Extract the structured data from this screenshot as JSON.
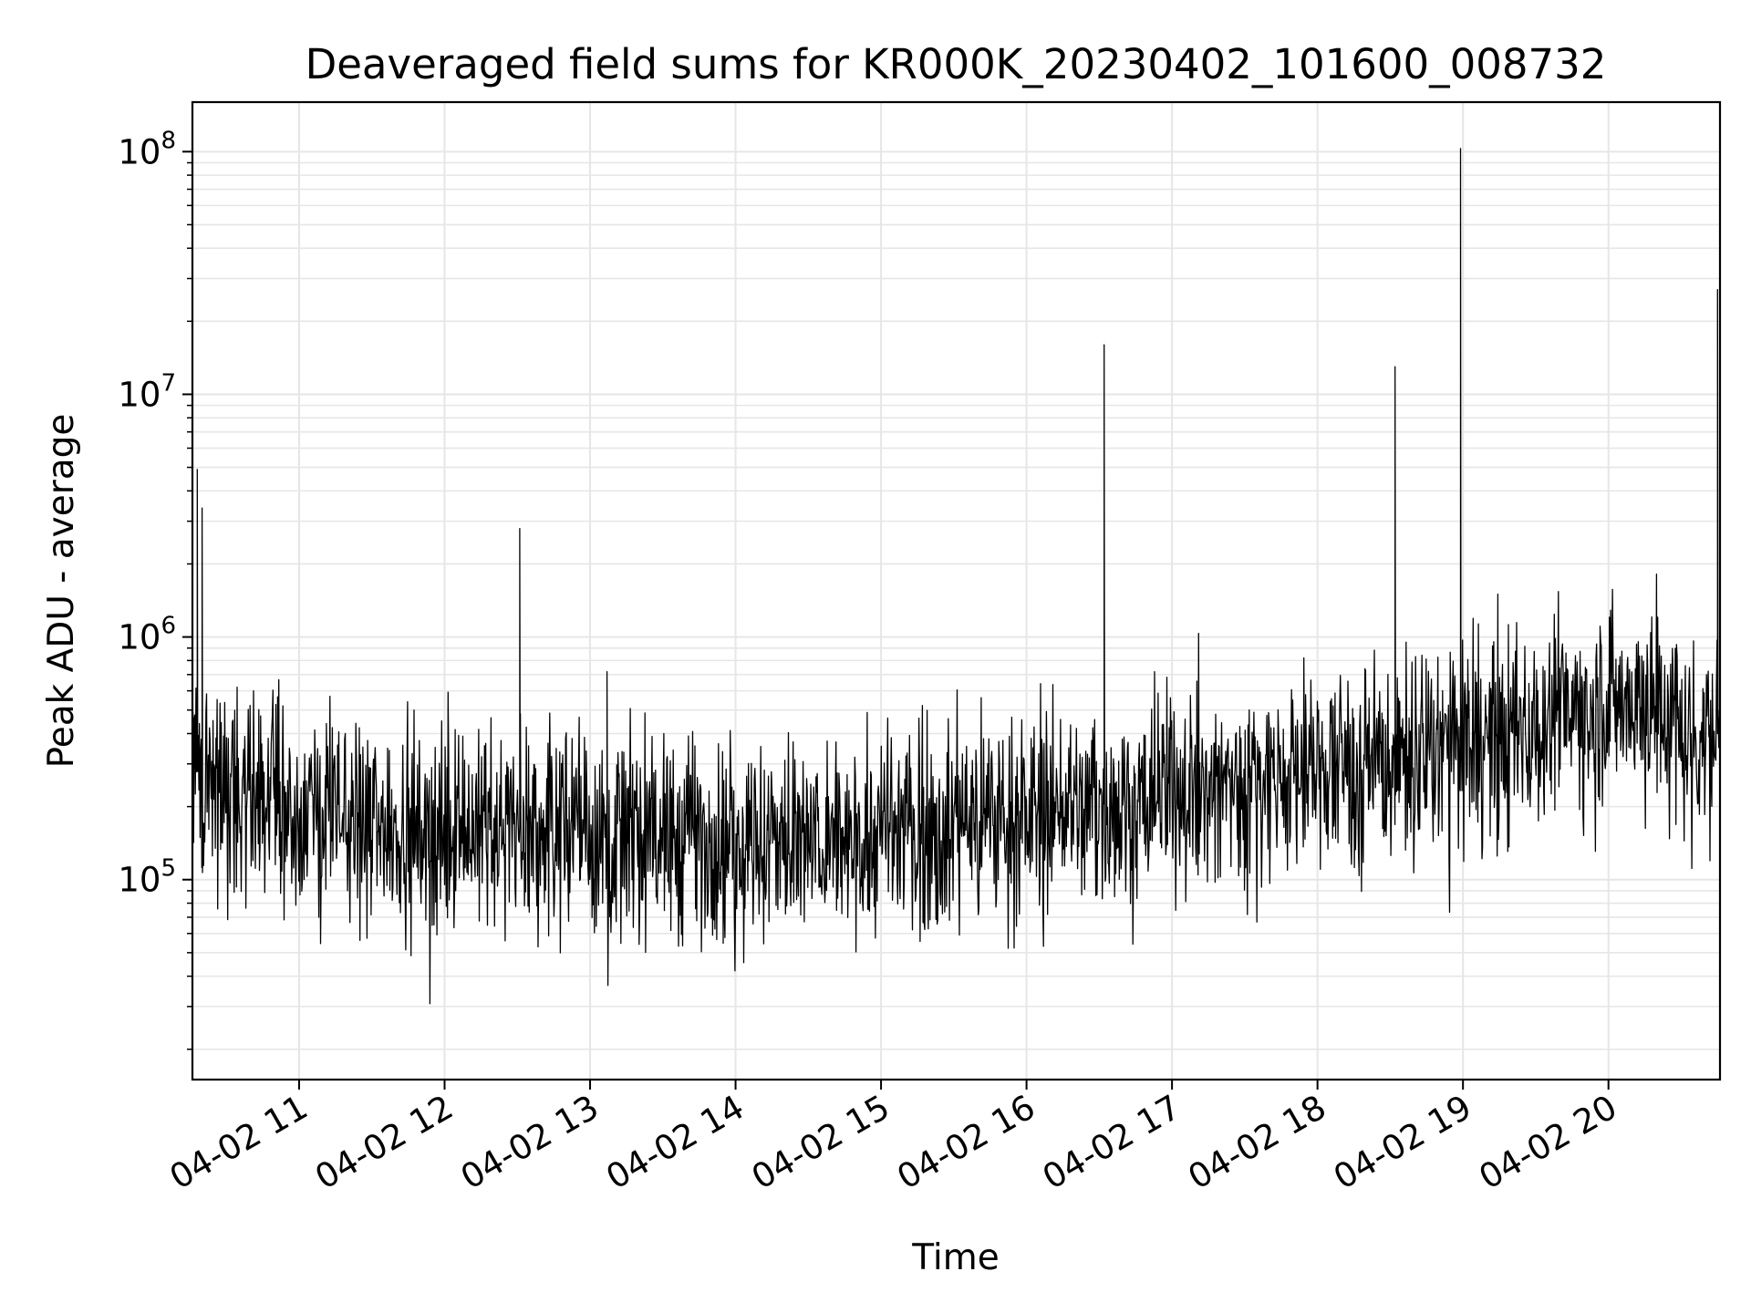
{
  "chart_data": {
    "type": "line",
    "title": "Deaveraged field sums for KR000K_20230402_101600_008732",
    "xlabel": "Time",
    "ylabel": "Peak ADU - average",
    "y_scale": "log",
    "ylim": [
      15000,
      160000000
    ],
    "xlim": [
      "04-02 10:16",
      "04-02 20:46"
    ],
    "grid": true,
    "legend": "none",
    "colors": {
      "line": "#000000",
      "grid": "#e6e6e6",
      "axis": "#000000",
      "background": "#ffffff"
    },
    "x_ticks": [
      {
        "label": "04-02 11",
        "hour": 11
      },
      {
        "label": "04-02 12",
        "hour": 12
      },
      {
        "label": "04-02 13",
        "hour": 13
      },
      {
        "label": "04-02 14",
        "hour": 14
      },
      {
        "label": "04-02 15",
        "hour": 15
      },
      {
        "label": "04-02 16",
        "hour": 16
      },
      {
        "label": "04-02 17",
        "hour": 17
      },
      {
        "label": "04-02 18",
        "hour": 18
      },
      {
        "label": "04-02 19",
        "hour": 19
      },
      {
        "label": "04-02 20",
        "hour": 20
      }
    ],
    "y_ticks": [
      {
        "base": "10",
        "exp": "5",
        "value": 100000
      },
      {
        "base": "10",
        "exp": "6",
        "value": 1000000
      },
      {
        "base": "10",
        "exp": "7",
        "value": 10000000
      },
      {
        "base": "10",
        "exp": "8",
        "value": 100000000
      }
    ],
    "series": [
      {
        "x": [
          "04-02 10:16",
          "04-02 10:18",
          "04-02 10:20",
          "04-02 10:30",
          "04-02 10:45",
          "04-02 11:00",
          "04-02 11:20",
          "04-02 11:40",
          "04-02 12:00",
          "04-02 12:20",
          "04-02 12:31",
          "04-02 12:45",
          "04-02 13:00",
          "04-02 13:07",
          "04-02 13:20",
          "04-02 13:40",
          "04-02 14:00",
          "04-02 14:20",
          "04-02 14:40",
          "04-02 15:00",
          "04-02 15:20",
          "04-02 15:40",
          "04-02 16:00",
          "04-02 16:20",
          "04-02 16:32",
          "04-02 16:45",
          "04-02 17:00",
          "04-02 17:20",
          "04-02 17:40",
          "04-02 18:00",
          "04-02 18:20",
          "04-02 18:32",
          "04-02 18:45",
          "04-02 18:59",
          "04-02 19:10",
          "04-02 19:30",
          "04-02 19:50",
          "04-02 20:00",
          "04-02 20:15",
          "04-02 20:30",
          "04-02 20:40",
          "04-02 20:45"
        ],
        "y": [
          300000,
          4900000,
          3400000,
          240000,
          200000,
          190000,
          180000,
          170000,
          160000,
          170000,
          2800000,
          160000,
          160000,
          720000,
          155000,
          150000,
          145000,
          145000,
          140000,
          150000,
          160000,
          175000,
          185000,
          200000,
          16000000,
          210000,
          225000,
          240000,
          260000,
          280000,
          300000,
          13000000,
          330000,
          103000000,
          380000,
          450000,
          520000,
          550000,
          560000,
          420000,
          400000,
          27000000
        ]
      }
    ]
  }
}
